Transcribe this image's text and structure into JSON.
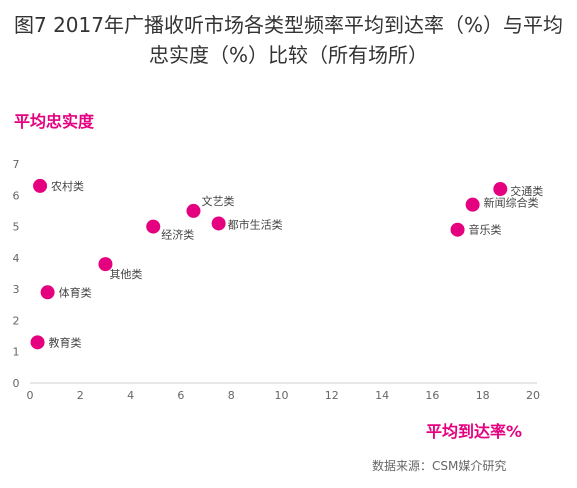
{
  "chart_data": {
    "type": "scatter",
    "title_line1": "图7 2017年广播收听市场各类型频率平均到达率（%）与平均",
    "title_line2": "忠实度（%）比较（所有场所）",
    "xlabel": "平均到达率%",
    "ylabel": "平均忠实度",
    "xlim": [
      0,
      20
    ],
    "ylim": [
      0,
      7
    ],
    "x_ticks": [
      "0",
      "2",
      "4",
      "6",
      "8",
      "10",
      "12",
      "14",
      "16",
      "18",
      "20"
    ],
    "y_ticks": [
      "0",
      "1",
      "2",
      "3",
      "4",
      "5",
      "6",
      "7"
    ],
    "grid": false,
    "point_color": "#e5007f",
    "points": [
      {
        "label": "农村类",
        "x": 0.4,
        "y": 6.3
      },
      {
        "label": "文艺类",
        "x": 6.5,
        "y": 5.5
      },
      {
        "label": "都市生活类",
        "x": 7.5,
        "y": 5.1
      },
      {
        "label": "经济类",
        "x": 4.9,
        "y": 5.0
      },
      {
        "label": "其他类",
        "x": 3.0,
        "y": 3.8
      },
      {
        "label": "体育类",
        "x": 0.7,
        "y": 2.9
      },
      {
        "label": "教育类",
        "x": 0.3,
        "y": 1.3
      },
      {
        "label": "交通类",
        "x": 18.7,
        "y": 6.2
      },
      {
        "label": "新闻综合类",
        "x": 17.6,
        "y": 5.7
      },
      {
        "label": "音乐类",
        "x": 17.0,
        "y": 4.9
      }
    ]
  },
  "source": "数据来源：CSM媒介研究"
}
